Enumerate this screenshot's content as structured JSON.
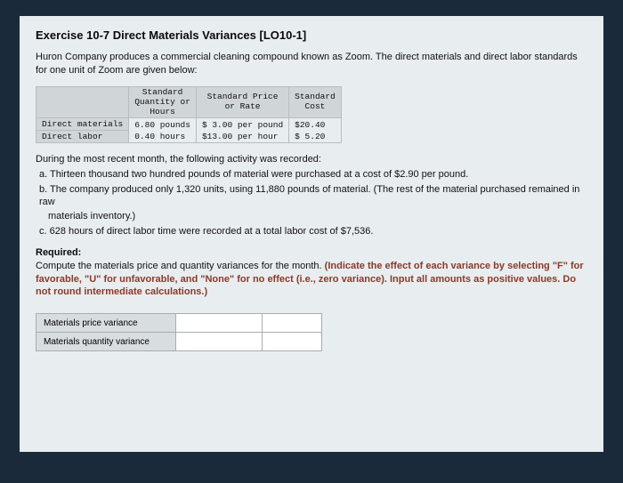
{
  "title": "Exercise 10-7 Direct Materials Variances [LO10-1]",
  "intro": "Huron Company produces a commercial cleaning compound known as Zoom. The direct materials and direct labor standards for one unit of Zoom are given below:",
  "stdtable": {
    "headers": {
      "col1": "",
      "col2_line1": "Standard",
      "col2_line2": "Quantity or",
      "col2_line3": "Hours",
      "col3_line1": "Standard Price",
      "col3_line2": "or Rate",
      "col4_line1": "Standard",
      "col4_line2": "Cost"
    },
    "rows": [
      {
        "label": "Direct materials",
        "qty": "6.80 pounds",
        "rate": "$ 3.00 per pound",
        "cost": "$20.40"
      },
      {
        "label": "Direct labor",
        "qty": "0.40 hours",
        "rate": "$13.00 per hour",
        "cost": "$ 5.20"
      }
    ]
  },
  "during": "During the most recent month, the following activity was recorded:",
  "activities": {
    "a": "a. Thirteen thousand two hundred pounds of material were purchased at a cost of $2.90 per pound.",
    "b": "b. The company produced only 1,320 units, using 11,880 pounds of material. (The rest of the material purchased remained in raw",
    "b2": "materials inventory.)",
    "c": "c. 628 hours of direct labor time were recorded at a total labor cost of $7,536."
  },
  "required_label": "Required:",
  "required_text": "Compute the materials price and quantity variances for the month. ",
  "required_hint": "(Indicate the effect of each variance by selecting \"F\" for favorable, \"U\" for unfavorable, and \"None\" for no effect (i.e., zero variance). Input all amounts as positive values. Do not round intermediate calculations.)",
  "answer_rows": {
    "r1": "Materials price variance",
    "r2": "Materials quantity variance"
  }
}
